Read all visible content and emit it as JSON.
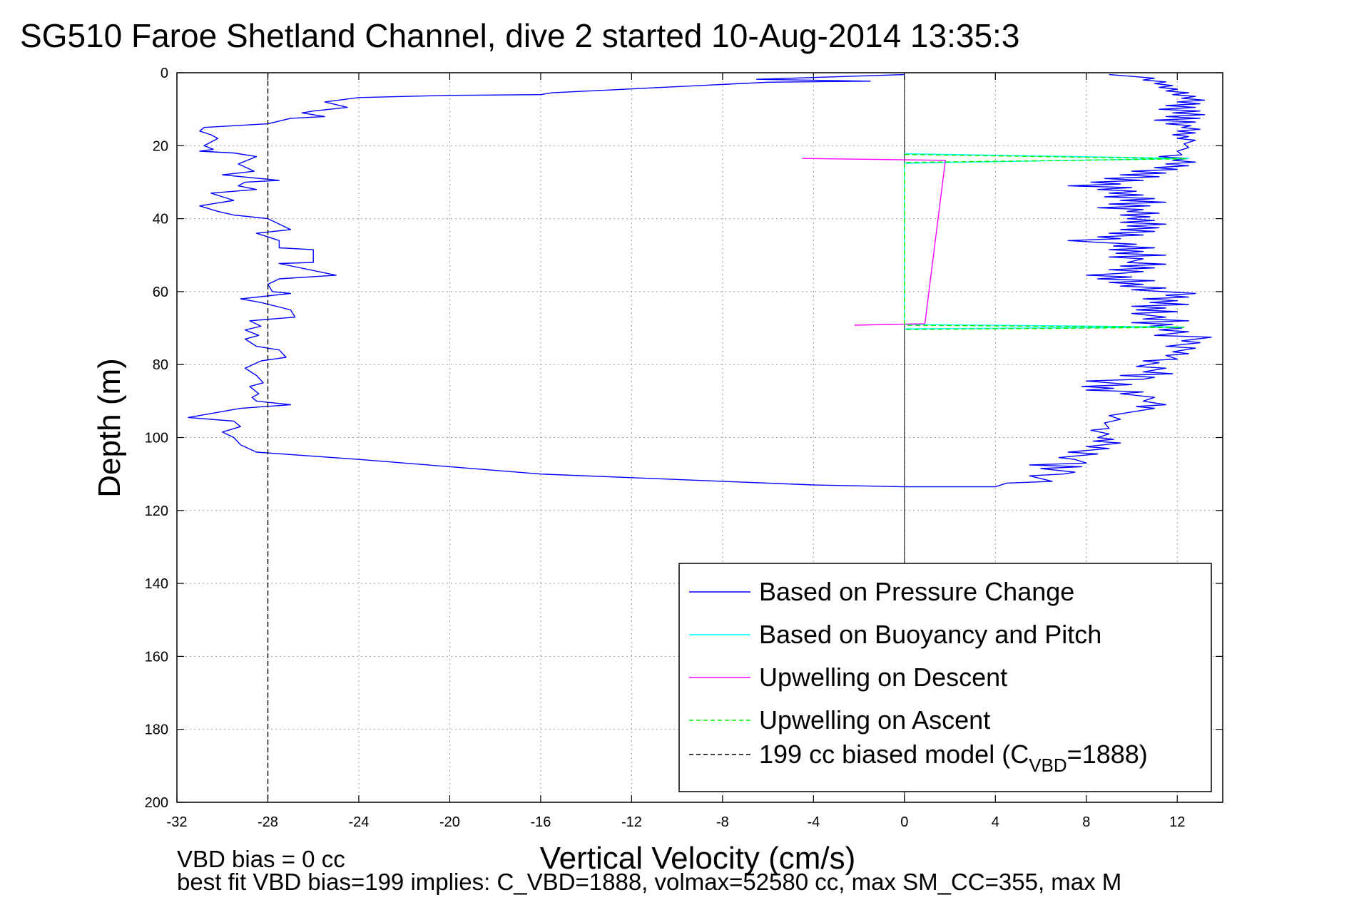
{
  "chart_data": {
    "type": "line",
    "title": "SG510 Faroe Shetland Channel, dive 2 started 10-Aug-2014 13:35:3",
    "xlabel": "Vertical Velocity (cm/s)",
    "ylabel": "Depth (m)",
    "xlim": [
      -32,
      14
    ],
    "ylim": [
      200,
      0
    ],
    "y_reversed": true,
    "grid": true,
    "xticks": [
      -32,
      -28,
      -24,
      -20,
      -16,
      -12,
      -8,
      -4,
      0,
      4,
      8,
      12
    ],
    "yticks": [
      0,
      20,
      40,
      60,
      80,
      100,
      120,
      140,
      160,
      180,
      200
    ],
    "legend_position": "bottom-right",
    "series": [
      {
        "name": "Based on Pressure Change",
        "color": "#0000ff",
        "style": "solid",
        "points": [
          [
            0,
            0.5
          ],
          [
            -6.5,
            1.8
          ],
          [
            -1.5,
            2.3
          ],
          [
            -6,
            2.6
          ],
          [
            -15.5,
            5.5
          ],
          [
            -16,
            6
          ],
          [
            -20,
            6.2
          ],
          [
            -24,
            6.8
          ],
          [
            -25.5,
            8
          ],
          [
            -24.5,
            9.5
          ],
          [
            -26,
            10.5
          ],
          [
            -26.5,
            11
          ],
          [
            -25.5,
            12
          ],
          [
            -27,
            12.5
          ],
          [
            -28,
            14
          ],
          [
            -30.8,
            15
          ],
          [
            -31,
            16
          ],
          [
            -30.5,
            17
          ],
          [
            -30.2,
            18
          ],
          [
            -30.8,
            20
          ],
          [
            -30.4,
            21
          ],
          [
            -31,
            21.5
          ],
          [
            -29.5,
            22
          ],
          [
            -28.5,
            23
          ],
          [
            -29.3,
            25
          ],
          [
            -28.6,
            27
          ],
          [
            -30,
            28
          ],
          [
            -27.5,
            29.5
          ],
          [
            -29,
            30
          ],
          [
            -29.3,
            31
          ],
          [
            -28.5,
            32
          ],
          [
            -30.5,
            33
          ],
          [
            -29.5,
            35
          ],
          [
            -31,
            36.5
          ],
          [
            -30.2,
            38
          ],
          [
            -29.5,
            39
          ],
          [
            -28,
            40
          ],
          [
            -27,
            43
          ],
          [
            -28.5,
            44
          ],
          [
            -27.5,
            46
          ],
          [
            -27.5,
            48
          ],
          [
            -26,
            48.5
          ],
          [
            -26,
            52
          ],
          [
            -27.5,
            52.3
          ],
          [
            -25,
            55.5
          ],
          [
            -27.5,
            56.5
          ],
          [
            -28,
            58
          ],
          [
            -27.8,
            60
          ],
          [
            -27,
            60.5
          ],
          [
            -29.2,
            62
          ],
          [
            -28.3,
            63
          ],
          [
            -27,
            65
          ],
          [
            -26.8,
            67
          ],
          [
            -28.8,
            68
          ],
          [
            -28.3,
            69.5
          ],
          [
            -29,
            70.5
          ],
          [
            -28.4,
            72
          ],
          [
            -29,
            73
          ],
          [
            -28.5,
            75
          ],
          [
            -27.5,
            76
          ],
          [
            -27.2,
            78
          ],
          [
            -28.3,
            79
          ],
          [
            -29,
            81
          ],
          [
            -28.5,
            83
          ],
          [
            -28.2,
            85
          ],
          [
            -28.8,
            86
          ],
          [
            -28.4,
            88
          ],
          [
            -28.7,
            89
          ],
          [
            -28.5,
            90
          ],
          [
            -27,
            91
          ],
          [
            -29.2,
            92
          ],
          [
            -31.5,
            94.5
          ],
          [
            -29.5,
            95.5
          ],
          [
            -29.2,
            97
          ],
          [
            -30,
            98.5
          ],
          [
            -29.5,
            100
          ],
          [
            -29.2,
            102
          ],
          [
            -28.5,
            104
          ],
          [
            -24,
            106
          ],
          [
            -20,
            108
          ],
          [
            -16,
            110
          ],
          [
            -12,
            111
          ],
          [
            -8,
            112
          ],
          [
            -4,
            113
          ],
          [
            0,
            113.5
          ],
          [
            2,
            113.5
          ],
          [
            4,
            113.5
          ],
          [
            4.5,
            112.5
          ],
          [
            6.5,
            112
          ],
          [
            5.5,
            110.5
          ],
          [
            7,
            110
          ],
          [
            7.5,
            109.5
          ],
          [
            6,
            108.5
          ],
          [
            7.8,
            108
          ],
          [
            5.5,
            107.5
          ],
          [
            8,
            107
          ],
          [
            7.5,
            106
          ],
          [
            6.8,
            105.5
          ],
          [
            8.5,
            104.5
          ],
          [
            7.2,
            104
          ],
          [
            9,
            103
          ],
          [
            8,
            102.5
          ],
          [
            9.5,
            101.5
          ],
          [
            8.3,
            101
          ],
          [
            9.2,
            100.5
          ],
          [
            8.5,
            100
          ],
          [
            9,
            99
          ],
          [
            8.2,
            98
          ],
          [
            9,
            97.5
          ],
          [
            8.8,
            96
          ],
          [
            9.5,
            95
          ],
          [
            9,
            94
          ],
          [
            10,
            93
          ],
          [
            11,
            92
          ],
          [
            10.2,
            91.5
          ],
          [
            11.5,
            91
          ],
          [
            10.5,
            90
          ],
          [
            11,
            89
          ],
          [
            9.5,
            88
          ],
          [
            10.5,
            87.5
          ],
          [
            8,
            87
          ],
          [
            9.2,
            86.5
          ],
          [
            7.8,
            86
          ],
          [
            10,
            85.5
          ],
          [
            8,
            84.5
          ],
          [
            10.5,
            84
          ],
          [
            11,
            83.5
          ],
          [
            9.5,
            83
          ],
          [
            11.8,
            82.5
          ],
          [
            10.5,
            82
          ],
          [
            11.5,
            81
          ],
          [
            10.2,
            80.5
          ],
          [
            11.2,
            79.5
          ],
          [
            10.5,
            79
          ],
          [
            12,
            78.5
          ],
          [
            11.5,
            77.5
          ],
          [
            12.5,
            77
          ],
          [
            11.8,
            76.5
          ],
          [
            12.8,
            75.5
          ],
          [
            11.5,
            75
          ],
          [
            13,
            74
          ],
          [
            12.2,
            73.5
          ],
          [
            13.5,
            72.5
          ],
          [
            11,
            72
          ],
          [
            12.5,
            71
          ],
          [
            11.2,
            70.5
          ],
          [
            12.2,
            70
          ],
          [
            10.8,
            69.5
          ],
          [
            11.8,
            69
          ],
          [
            10,
            68.5
          ],
          [
            12.5,
            68
          ],
          [
            10.5,
            67.5
          ],
          [
            11.5,
            67
          ],
          [
            10,
            66
          ],
          [
            12,
            65.5
          ],
          [
            10.2,
            65
          ],
          [
            11.5,
            64.5
          ],
          [
            10,
            64
          ],
          [
            12.5,
            63.5
          ],
          [
            10.8,
            63
          ],
          [
            12,
            62.5
          ],
          [
            10.5,
            62
          ],
          [
            12.5,
            61.5
          ],
          [
            11.5,
            61
          ],
          [
            12.8,
            60.5
          ],
          [
            10,
            59.5
          ],
          [
            11.5,
            59
          ],
          [
            9.5,
            58.5
          ],
          [
            10.5,
            58
          ],
          [
            9,
            57.5
          ],
          [
            11,
            57
          ],
          [
            8.5,
            56.5
          ],
          [
            10,
            56
          ],
          [
            8,
            55.5
          ],
          [
            9.5,
            55
          ],
          [
            10.5,
            54.5
          ],
          [
            9,
            54
          ],
          [
            11,
            53.5
          ],
          [
            9.5,
            53
          ],
          [
            11.5,
            52.5
          ],
          [
            9.8,
            52
          ],
          [
            10.5,
            51
          ],
          [
            9,
            50.5
          ],
          [
            11.5,
            50
          ],
          [
            9.3,
            49.5
          ],
          [
            10.5,
            49
          ],
          [
            9,
            48.5
          ],
          [
            11,
            48
          ],
          [
            9.2,
            47.5
          ],
          [
            10.2,
            47
          ],
          [
            8.5,
            46.5
          ],
          [
            7.2,
            46
          ],
          [
            9.5,
            45.5
          ],
          [
            8.5,
            45
          ],
          [
            10.5,
            44.5
          ],
          [
            9,
            44
          ],
          [
            11,
            43.5
          ],
          [
            9.5,
            43
          ],
          [
            11.2,
            42.5
          ],
          [
            9.8,
            42
          ],
          [
            11.5,
            41.5
          ],
          [
            9.5,
            41
          ],
          [
            11,
            40.5
          ],
          [
            9.8,
            40
          ],
          [
            10.8,
            39.5
          ],
          [
            9.5,
            39
          ],
          [
            11.2,
            38.5
          ],
          [
            9.8,
            38
          ],
          [
            10.5,
            37.5
          ],
          [
            8.5,
            37
          ],
          [
            10.8,
            36.5
          ],
          [
            9,
            36
          ],
          [
            11.5,
            35.5
          ],
          [
            9.5,
            35
          ],
          [
            11,
            34.5
          ],
          [
            8.8,
            34
          ],
          [
            10.5,
            33.5
          ],
          [
            9,
            33
          ],
          [
            10.2,
            32.5
          ],
          [
            8.5,
            32
          ],
          [
            10,
            31.5
          ],
          [
            7.2,
            31
          ],
          [
            9.5,
            30.5
          ],
          [
            8.2,
            30
          ],
          [
            10.5,
            29.5
          ],
          [
            8.8,
            29
          ],
          [
            11.2,
            28.5
          ],
          [
            9.5,
            28
          ],
          [
            11.5,
            27.5
          ],
          [
            10,
            27
          ],
          [
            12,
            26.5
          ],
          [
            11,
            26
          ],
          [
            12.5,
            25.5
          ],
          [
            11.5,
            25
          ],
          [
            12.8,
            24.5
          ],
          [
            11.8,
            24
          ],
          [
            12.5,
            23.5
          ],
          [
            11.2,
            23
          ],
          [
            12.2,
            22.5
          ],
          [
            12,
            21.5
          ],
          [
            12.5,
            20.5
          ],
          [
            12.3,
            19.5
          ],
          [
            12.8,
            18.5
          ],
          [
            12,
            18
          ],
          [
            12.5,
            17.5
          ],
          [
            11.8,
            17
          ],
          [
            12.8,
            16.5
          ],
          [
            12,
            16
          ],
          [
            13,
            15.5
          ],
          [
            12.2,
            15
          ],
          [
            12.6,
            14.5
          ],
          [
            11.5,
            14
          ],
          [
            12.8,
            13.5
          ],
          [
            11,
            13
          ],
          [
            13,
            12.5
          ],
          [
            11.5,
            12
          ],
          [
            13.2,
            11.5
          ],
          [
            11.8,
            11
          ],
          [
            13,
            10.5
          ],
          [
            11.2,
            10
          ],
          [
            12.8,
            9.5
          ],
          [
            11.5,
            9
          ],
          [
            13,
            8.5
          ],
          [
            12,
            8
          ],
          [
            13.2,
            7.5
          ],
          [
            12.2,
            7
          ],
          [
            12.8,
            6.5
          ],
          [
            11.8,
            6
          ],
          [
            12.5,
            5.5
          ],
          [
            11.5,
            5
          ],
          [
            12,
            4.5
          ],
          [
            11.2,
            4
          ],
          [
            11.8,
            3.5
          ],
          [
            11,
            3
          ],
          [
            11.5,
            2.5
          ],
          [
            10.5,
            2
          ],
          [
            11,
            1.5
          ],
          [
            10,
            1
          ],
          [
            9,
            0.5
          ]
        ]
      },
      {
        "name": "Based on Buoyancy and Pitch",
        "color": "#00ffff",
        "style": "solid",
        "points": [
          [
            0,
            22.2
          ],
          [
            12.5,
            23.5
          ],
          [
            0,
            24.8
          ],
          [
            0,
            69
          ],
          [
            12.2,
            69.7
          ],
          [
            0,
            70.2
          ]
        ]
      },
      {
        "name": "Upwelling on Descent",
        "color": "#ff00ff",
        "style": "solid",
        "points": [
          [
            -4.5,
            23.5
          ],
          [
            1.8,
            24
          ],
          [
            0.9,
            68.8
          ],
          [
            -2.2,
            69.2
          ]
        ]
      },
      {
        "name": "Upwelling on Ascent",
        "color": "#00ee00",
        "style": "dashed",
        "points": [
          [
            0,
            22.4
          ],
          [
            12.4,
            23.6
          ],
          [
            0,
            24.6
          ],
          [
            0,
            69.2
          ],
          [
            12.3,
            69.8
          ],
          [
            0,
            70.4
          ]
        ]
      },
      {
        "name": "199 cc biased model (C",
        "name_sub": "VBD",
        "name_suffix": "=1888)",
        "color": "#000000",
        "style": "dashed",
        "points": [
          [
            -28,
            0
          ],
          [
            -28,
            200
          ]
        ]
      }
    ],
    "reference_lines": [
      {
        "axis": "x",
        "value": 0,
        "color": "#000000"
      }
    ],
    "annotations": [
      "VBD bias = 0 cc",
      "best fit VBD bias=199 implies: C_VBD=1888, volmax=52580 cc, max SM_CC=355, max M"
    ]
  }
}
